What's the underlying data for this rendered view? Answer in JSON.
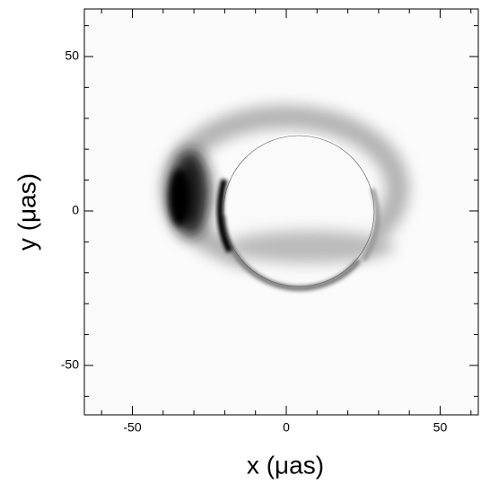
{
  "chart_data": {
    "type": "image",
    "xlabel": "x (μas)",
    "ylabel": "y (μas)",
    "xlim": [
      -65.6,
      62.4
    ],
    "ylim": [
      -66,
      65.4
    ],
    "xticks": [
      -50,
      0,
      50
    ],
    "yticks": [
      -50,
      0,
      50
    ],
    "xminorticks": [
      -60,
      -40,
      -30,
      -20,
      -10,
      10,
      20,
      30,
      40,
      60
    ],
    "yminorticks": [
      -60,
      -40,
      -30,
      -20,
      -10,
      10,
      20,
      30,
      40,
      60
    ]
  }
}
